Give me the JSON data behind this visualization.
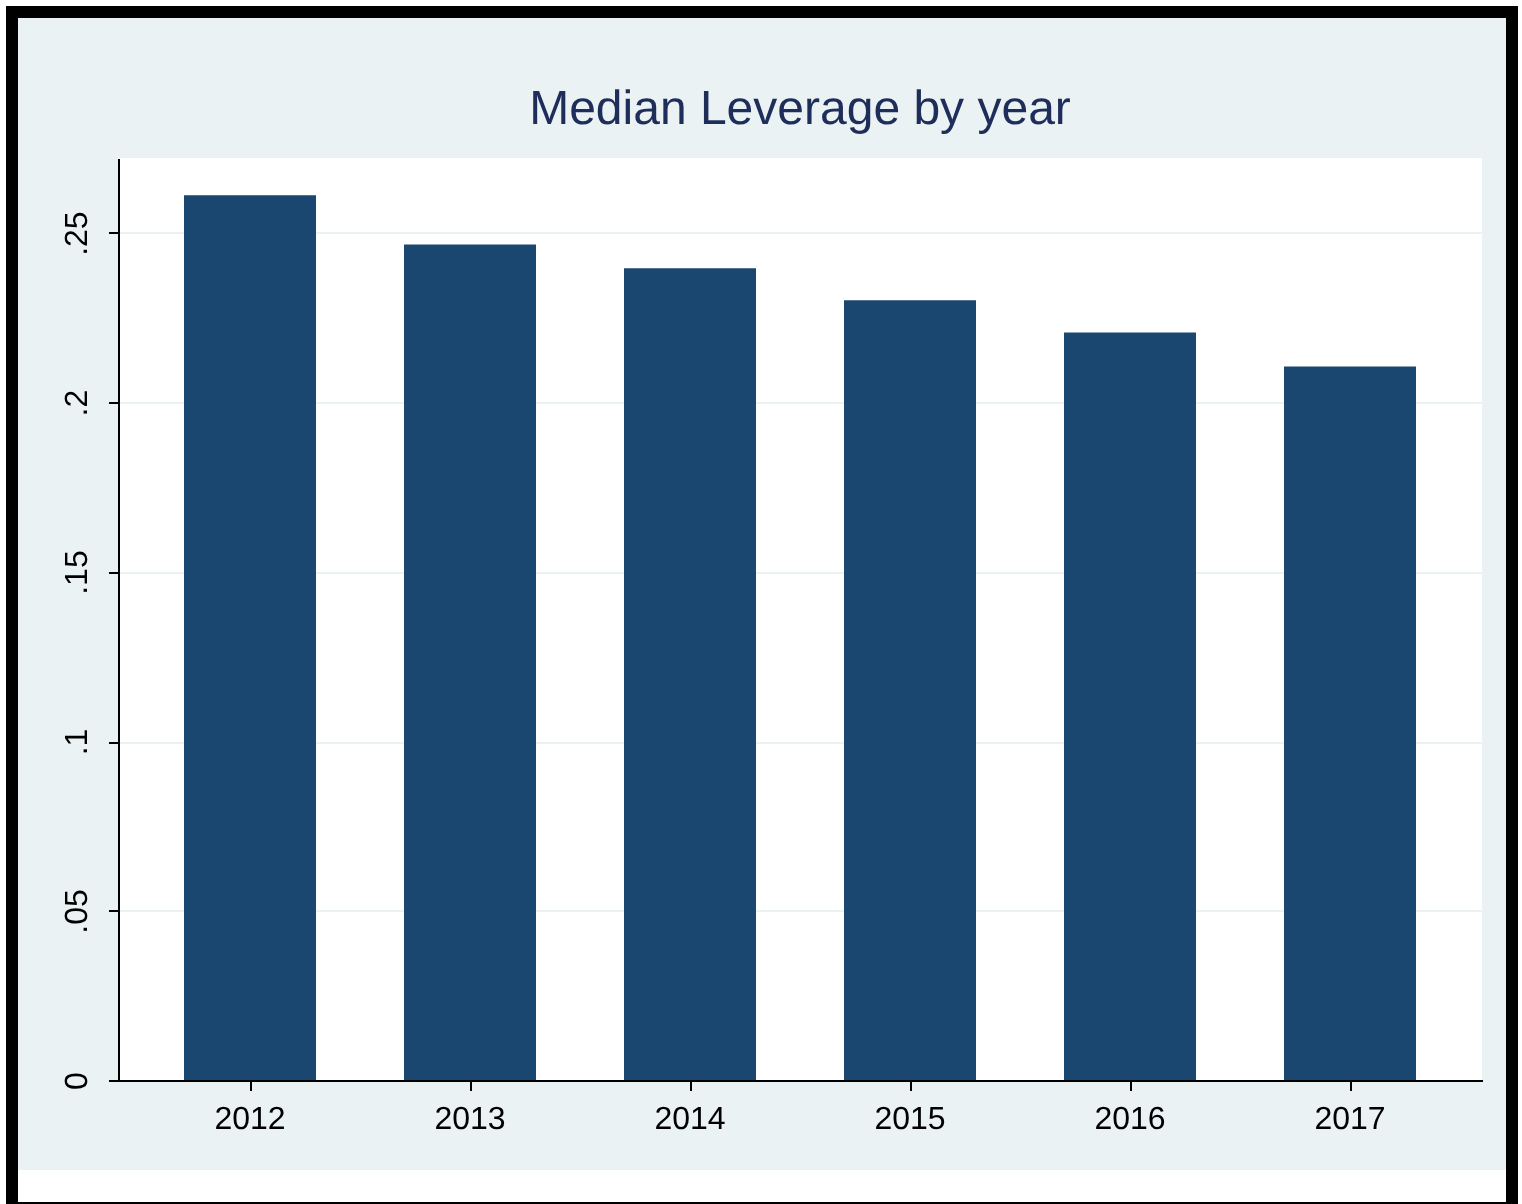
{
  "chart_data": {
    "type": "bar",
    "title": "Median Leverage by year",
    "categories": [
      "2012",
      "2013",
      "2014",
      "2015",
      "2016",
      "2017"
    ],
    "values": [
      0.261,
      0.2465,
      0.2395,
      0.23,
      0.2205,
      0.2105
    ],
    "color": "#1a476f",
    "ylim": [
      0,
      0.272
    ],
    "yticks": [
      {
        "value": 0,
        "label": "0"
      },
      {
        "value": 0.05,
        "label": ".05"
      },
      {
        "value": 0.1,
        "label": ".1"
      },
      {
        "value": 0.15,
        "label": ".15"
      },
      {
        "value": 0.2,
        "label": ".2"
      },
      {
        "value": 0.25,
        "label": ".25"
      }
    ],
    "grid": "y"
  }
}
